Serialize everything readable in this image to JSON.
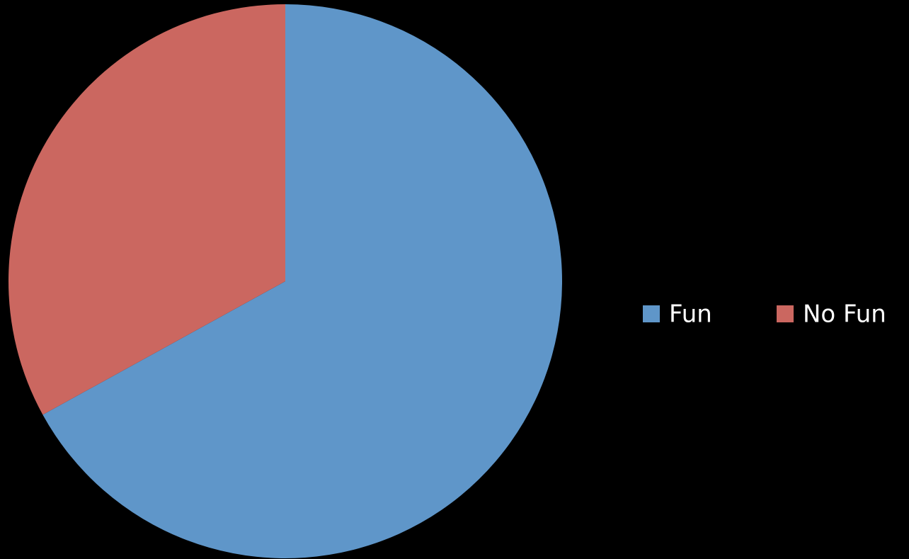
{
  "chart_data": {
    "type": "pie",
    "categories": [
      "Fun",
      "No Fun"
    ],
    "values": [
      67,
      33
    ],
    "colors": [
      "#5f96c9",
      "#cb6760"
    ],
    "legend": "right"
  }
}
